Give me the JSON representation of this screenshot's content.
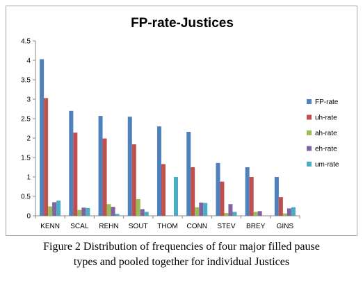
{
  "chart_data": {
    "type": "bar",
    "title": "FP-rate-Justices",
    "categories": [
      "KENN",
      "SCAL",
      "REHN",
      "SOUT",
      "THOM",
      "CONN",
      "STEV",
      "BREY",
      "GINS"
    ],
    "ylim": [
      0,
      4.5
    ],
    "yticks": [
      "0",
      "0.5",
      "1",
      "1.5",
      "2",
      "2.5",
      "3",
      "3.5",
      "4",
      "4.5"
    ],
    "xlabel": "",
    "ylabel": "",
    "grid": false,
    "legend_position": "right",
    "series": [
      {
        "name": "FP-rate",
        "color": "#4f81bd",
        "values": [
          4.03,
          2.7,
          2.57,
          2.55,
          2.3,
          2.16,
          1.36,
          1.25,
          1.0
        ]
      },
      {
        "name": "uh-rate",
        "color": "#c0504d",
        "values": [
          3.03,
          2.14,
          1.99,
          1.84,
          1.33,
          1.25,
          0.88,
          1.0,
          0.48
        ]
      },
      {
        "name": "ah-rate",
        "color": "#9bbb59",
        "values": [
          0.24,
          0.15,
          0.3,
          0.43,
          0.0,
          0.22,
          0.07,
          0.1,
          0.06
        ]
      },
      {
        "name": "eh-rate",
        "color": "#8064a2",
        "values": [
          0.35,
          0.21,
          0.23,
          0.17,
          0.0,
          0.34,
          0.3,
          0.12,
          0.19
        ]
      },
      {
        "name": "um-rate",
        "color": "#4bacc6",
        "values": [
          0.39,
          0.2,
          0.05,
          0.1,
          1.0,
          0.33,
          0.1,
          0.0,
          0.22
        ]
      }
    ]
  },
  "caption": {
    "line1": "Figure 2     Distribution of frequencies of four major filled pause",
    "line2": "types and pooled together for individual Justices"
  }
}
